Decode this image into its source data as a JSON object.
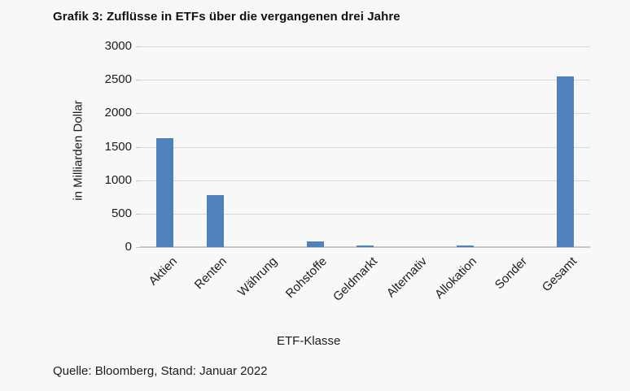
{
  "window": {
    "background": "#f8f8f8"
  },
  "chart_data": {
    "type": "bar",
    "title": "Grafik 3: Zuflüsse in ETFs über die vergangenen drei Jahre",
    "categories": [
      "Aktien",
      "Renten",
      "Währung",
      "Rohstoffe",
      "Geldmarkt",
      "Alternativ",
      "Allokation",
      "Sonder",
      "Gesamt"
    ],
    "values": [
      1630,
      780,
      0,
      90,
      30,
      0,
      30,
      0,
      2550
    ],
    "xlabel": "ETF-Klasse",
    "ylabel": "in Milliarden Dollar",
    "ylim": [
      0,
      3000
    ],
    "yticks": [
      0,
      500,
      1000,
      1500,
      2000,
      2500,
      3000
    ],
    "grid": true,
    "legend": false,
    "bar_color": "#4f81bd",
    "gridline_color": "#d9d9d9",
    "axis_color": "#c6c6c6",
    "text_color": "#1c1c1c",
    "source": "Quelle: Bloomberg, Stand: Januar 2022"
  }
}
